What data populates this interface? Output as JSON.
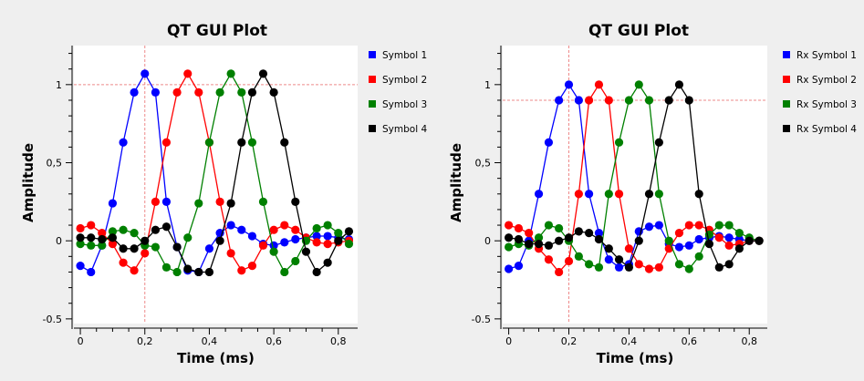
{
  "chart_data": [
    {
      "type": "line",
      "title": "QT GUI Plot",
      "xlabel": "Time (ms)",
      "ylabel": "Amplitude",
      "xlim": [
        -0.02,
        0.86
      ],
      "ylim": [
        -0.53,
        1.25
      ],
      "xticks": [
        0,
        0.2,
        0.4,
        0.6,
        0.8
      ],
      "xtick_labels": [
        "0",
        "0,2",
        "0,4",
        "0,6",
        "0,8"
      ],
      "yticks": [
        -0.5,
        0,
        0.5,
        1
      ],
      "ytick_labels": [
        "-0.5",
        "0",
        "0,5",
        "1"
      ],
      "grid": false,
      "legend": "right",
      "marker_cursor": {
        "x": 0.2,
        "y": 1.0
      },
      "x": [
        0,
        0.033,
        0.067,
        0.1,
        0.133,
        0.167,
        0.2,
        0.233,
        0.267,
        0.3,
        0.333,
        0.367,
        0.4,
        0.433,
        0.467,
        0.5,
        0.533,
        0.567,
        0.6,
        0.633,
        0.667,
        0.7,
        0.733,
        0.767,
        0.8,
        0.833
      ],
      "series": [
        {
          "name": "Symbol 1",
          "color": "#0000ff",
          "values": [
            -0.16,
            -0.2,
            -0.03,
            0.24,
            0.63,
            0.95,
            1.07,
            0.95,
            0.25,
            -0.04,
            -0.19,
            -0.2,
            -0.05,
            0.05,
            0.1,
            0.07,
            0.03,
            -0.02,
            -0.03,
            -0.01,
            0.01,
            0.02,
            0.03,
            0.03,
            0.02,
            0.01
          ]
        },
        {
          "name": "Symbol 2",
          "color": "#ff0000",
          "values": [
            0.08,
            0.1,
            0.05,
            -0.02,
            -0.14,
            -0.19,
            -0.08,
            0.25,
            0.63,
            0.95,
            1.07,
            0.95,
            0.63,
            0.25,
            -0.08,
            -0.19,
            -0.16,
            -0.03,
            0.07,
            0.1,
            0.07,
            0.02,
            -0.01,
            -0.02,
            -0.01,
            0.0
          ]
        },
        {
          "name": "Symbol 3",
          "color": "#008000",
          "values": [
            -0.02,
            -0.03,
            -0.03,
            0.06,
            0.07,
            0.05,
            -0.03,
            -0.04,
            -0.17,
            -0.2,
            0.02,
            0.24,
            0.63,
            0.95,
            1.07,
            0.95,
            0.63,
            0.25,
            -0.07,
            -0.2,
            -0.13,
            0.0,
            0.08,
            0.1,
            0.05,
            -0.02
          ]
        },
        {
          "name": "Symbol 4",
          "color": "#000000",
          "values": [
            0.02,
            0.02,
            0.01,
            0.02,
            -0.05,
            -0.05,
            0.0,
            0.07,
            0.09,
            -0.04,
            -0.18,
            -0.2,
            -0.2,
            0.0,
            0.24,
            0.63,
            0.95,
            1.07,
            0.95,
            0.63,
            0.25,
            -0.07,
            -0.2,
            -0.14,
            0.0,
            0.06
          ]
        }
      ]
    },
    {
      "type": "line",
      "title": "QT GUI Plot",
      "xlabel": "Time (ms)",
      "ylabel": "Amplitude",
      "xlim": [
        -0.02,
        0.86
      ],
      "ylim": [
        -0.53,
        1.25
      ],
      "xticks": [
        0,
        0.2,
        0.4,
        0.6,
        0.8
      ],
      "xtick_labels": [
        "0",
        "0,2",
        "0,4",
        "0,6",
        "0,8"
      ],
      "yticks": [
        -0.5,
        0,
        0.5,
        1
      ],
      "ytick_labels": [
        "-0.5",
        "0",
        "0,5",
        "1"
      ],
      "grid": false,
      "legend": "right",
      "marker_cursor": {
        "x": 0.2,
        "y": 0.9
      },
      "x": [
        0,
        0.033,
        0.067,
        0.1,
        0.133,
        0.167,
        0.2,
        0.233,
        0.267,
        0.3,
        0.333,
        0.367,
        0.4,
        0.433,
        0.467,
        0.5,
        0.533,
        0.567,
        0.6,
        0.633,
        0.667,
        0.7,
        0.733,
        0.767,
        0.8,
        0.833
      ],
      "series": [
        {
          "name": "Rx Symbol 1",
          "color": "#0000ff",
          "values": [
            -0.18,
            -0.16,
            0.0,
            0.3,
            0.63,
            0.9,
            1.0,
            0.9,
            0.3,
            0.05,
            -0.12,
            -0.17,
            -0.15,
            0.06,
            0.09,
            0.1,
            -0.02,
            -0.04,
            -0.03,
            0.01,
            0.02,
            0.03,
            0.02,
            0.01,
            0.0,
            0.0
          ]
        },
        {
          "name": "Rx Symbol 2",
          "color": "#ff0000",
          "values": [
            0.1,
            0.08,
            0.05,
            -0.05,
            -0.12,
            -0.2,
            -0.13,
            0.3,
            0.9,
            1.0,
            0.9,
            0.3,
            -0.05,
            -0.15,
            -0.18,
            -0.17,
            -0.05,
            0.05,
            0.1,
            0.1,
            0.07,
            0.02,
            -0.03,
            -0.02,
            0.0,
            0.0
          ]
        },
        {
          "name": "Rx Symbol 3",
          "color": "#008000",
          "values": [
            -0.04,
            -0.02,
            -0.03,
            0.02,
            0.1,
            0.08,
            0.0,
            -0.1,
            -0.15,
            -0.17,
            0.3,
            0.63,
            0.9,
            1.0,
            0.9,
            0.3,
            0.0,
            -0.15,
            -0.18,
            -0.1,
            0.04,
            0.1,
            0.1,
            0.05,
            0.02,
            0.0
          ]
        },
        {
          "name": "Rx Symbol 4",
          "color": "#000000",
          "values": [
            0.02,
            0.01,
            -0.02,
            -0.02,
            -0.03,
            0.0,
            0.02,
            0.06,
            0.05,
            0.01,
            -0.05,
            -0.12,
            -0.17,
            0.0,
            0.3,
            0.63,
            0.9,
            1.0,
            0.9,
            0.3,
            -0.02,
            -0.17,
            -0.15,
            -0.05,
            0.0,
            0.0
          ]
        }
      ]
    }
  ]
}
